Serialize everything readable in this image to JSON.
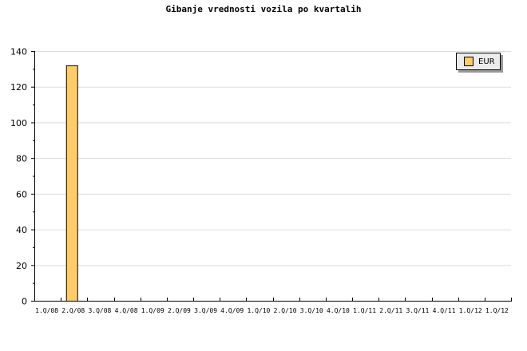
{
  "chart_data": {
    "type": "bar",
    "title": "Gibanje vrednosti vozila po kvartalih",
    "categories": [
      "1.Q/08",
      "2.Q/08",
      "3.Q/08",
      "4.Q/08",
      "1.Q/09",
      "2.Q/09",
      "3.Q/09",
      "4.Q/09",
      "1.Q/10",
      "2.Q/10",
      "3.Q/10",
      "4.Q/10",
      "1.Q/11",
      "2.Q/11",
      "3.Q/11",
      "4.Q/11",
      "1.Q/12",
      "1.Q/12"
    ],
    "series": [
      {
        "name": "EUR",
        "values": [
          0,
          132,
          0,
          0,
          0,
          0,
          0,
          0,
          0,
          0,
          0,
          0,
          0,
          0,
          0,
          0,
          0,
          0
        ],
        "color": "#ffcc66"
      }
    ],
    "ylim": [
      0,
      140
    ],
    "yticks": [
      0,
      20,
      40,
      60,
      80,
      100,
      120,
      140
    ],
    "xlabel": "",
    "ylabel": "",
    "grid": true,
    "legend": "top-right"
  }
}
